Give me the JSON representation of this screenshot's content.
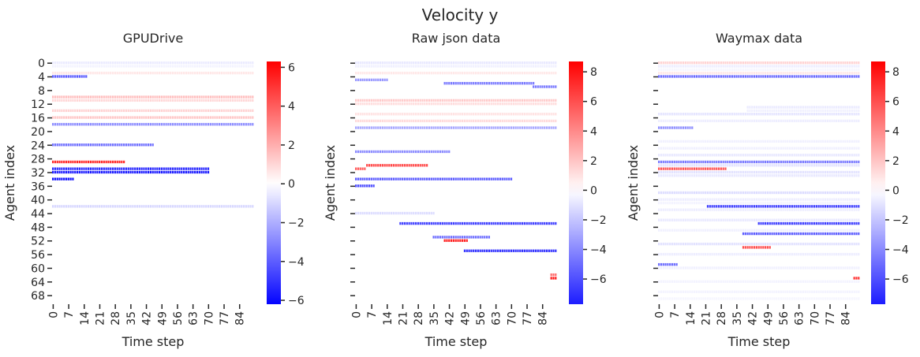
{
  "figure": {
    "suptitle": "Velocity y"
  },
  "chart_data": [
    {
      "type": "heatmap",
      "title": "GPUDrive",
      "xlabel": "Time step",
      "ylabel": "Agent index",
      "n_rows": 71,
      "n_cols": 91,
      "x_ticks": [
        0,
        7,
        14,
        21,
        28,
        35,
        42,
        49,
        56,
        63,
        70,
        77,
        84
      ],
      "y_ticks": [
        0,
        4,
        8,
        12,
        16,
        20,
        24,
        28,
        32,
        36,
        40,
        44,
        48,
        52,
        56,
        60,
        64,
        68
      ],
      "show_ytick_labels": true,
      "colorbar": {
        "vmin": -6.2,
        "vmax": 6.3,
        "ticks": [
          -6,
          -4,
          -2,
          0,
          2,
          4,
          6
        ]
      },
      "agents": [
        {
          "row": 0,
          "start": 0,
          "end": 90,
          "value": -0.5
        },
        {
          "row": 1,
          "start": 0,
          "end": 90,
          "value": -0.3
        },
        {
          "row": 3,
          "start": 0,
          "end": 90,
          "value": 0.6
        },
        {
          "row": 4,
          "start": 0,
          "end": 15,
          "value": -4.0
        },
        {
          "row": 10,
          "start": 0,
          "end": 90,
          "value": 1.6
        },
        {
          "row": 11,
          "start": 0,
          "end": 90,
          "value": 1.0
        },
        {
          "row": 14,
          "start": 0,
          "end": 90,
          "value": 1.1
        },
        {
          "row": 16,
          "start": 0,
          "end": 90,
          "value": 1.4
        },
        {
          "row": 18,
          "start": 0,
          "end": 90,
          "value": -2.8
        },
        {
          "row": 24,
          "start": 0,
          "end": 45,
          "value": -3.5
        },
        {
          "row": 29,
          "start": 0,
          "end": 32,
          "value": 5.2
        },
        {
          "row": 31,
          "start": 0,
          "end": 70,
          "value": -5.2
        },
        {
          "row": 32,
          "start": 0,
          "end": 70,
          "value": -5.6
        },
        {
          "row": 34,
          "start": 0,
          "end": 9,
          "value": -5.8
        },
        {
          "row": 42,
          "start": 0,
          "end": 90,
          "value": -1.0
        }
      ]
    },
    {
      "type": "heatmap",
      "title": "Raw json data",
      "xlabel": "Time step",
      "ylabel": "Agent index",
      "n_rows": 71,
      "n_cols": 91,
      "x_ticks": [
        0,
        7,
        14,
        21,
        28,
        35,
        42,
        49,
        56,
        63,
        70,
        77,
        84
      ],
      "y_ticks": [
        0,
        4,
        8,
        12,
        16,
        20,
        24,
        28,
        32,
        36,
        40,
        44,
        48,
        52,
        56,
        60,
        64,
        68
      ],
      "show_ytick_labels": false,
      "colorbar": {
        "vmin": -7.7,
        "vmax": 8.7,
        "ticks": [
          -6,
          -4,
          -2,
          0,
          2,
          4,
          6,
          8
        ]
      },
      "agents": [
        {
          "row": 0,
          "start": 0,
          "end": 90,
          "value": -0.8
        },
        {
          "row": 1,
          "start": 0,
          "end": 90,
          "value": -0.5
        },
        {
          "row": 3,
          "start": 0,
          "end": 90,
          "value": 0.8
        },
        {
          "row": 5,
          "start": 0,
          "end": 14,
          "value": -3.5
        },
        {
          "row": 6,
          "start": 40,
          "end": 80,
          "value": -4.5
        },
        {
          "row": 7,
          "start": 80,
          "end": 90,
          "value": -4.5
        },
        {
          "row": 11,
          "start": 0,
          "end": 90,
          "value": 1.8
        },
        {
          "row": 12,
          "start": 0,
          "end": 90,
          "value": 1.2
        },
        {
          "row": 15,
          "start": 0,
          "end": 90,
          "value": 1.0
        },
        {
          "row": 17,
          "start": 0,
          "end": 90,
          "value": 1.3
        },
        {
          "row": 19,
          "start": 0,
          "end": 90,
          "value": -3.0
        },
        {
          "row": 26,
          "start": 0,
          "end": 42,
          "value": -4.0
        },
        {
          "row": 30,
          "start": 5,
          "end": 32,
          "value": 6.2
        },
        {
          "row": 31,
          "start": 0,
          "end": 4,
          "value": 5.5
        },
        {
          "row": 34,
          "start": 0,
          "end": 70,
          "value": -5.5
        },
        {
          "row": 36,
          "start": 0,
          "end": 8,
          "value": -6.0
        },
        {
          "row": 44,
          "start": 0,
          "end": 35,
          "value": -1.2
        },
        {
          "row": 47,
          "start": 20,
          "end": 90,
          "value": -6.5
        },
        {
          "row": 51,
          "start": 35,
          "end": 60,
          "value": -5.0
        },
        {
          "row": 52,
          "start": 40,
          "end": 50,
          "value": 7.5
        },
        {
          "row": 55,
          "start": 49,
          "end": 90,
          "value": -7.0
        },
        {
          "row": 62,
          "start": 88,
          "end": 90,
          "value": 5.0
        },
        {
          "row": 63,
          "start": 88,
          "end": 90,
          "value": 8.0
        }
      ]
    },
    {
      "type": "heatmap",
      "title": "Waymax data",
      "xlabel": "Time step",
      "ylabel": "Agent index",
      "n_rows": 71,
      "n_cols": 91,
      "x_ticks": [
        0,
        7,
        14,
        21,
        28,
        35,
        42,
        49,
        56,
        63,
        70,
        77,
        84
      ],
      "y_ticks": [
        0,
        4,
        8,
        12,
        16,
        20,
        24,
        28,
        32,
        36,
        40,
        44,
        48,
        52,
        56,
        60,
        64,
        68
      ],
      "show_ytick_labels": false,
      "colorbar": {
        "vmin": -7.7,
        "vmax": 8.7,
        "ticks": [
          -6,
          -4,
          -2,
          0,
          2,
          4,
          6,
          8
        ]
      },
      "agents": [
        {
          "row": 0,
          "start": 0,
          "end": 90,
          "value": 1.5
        },
        {
          "row": 1,
          "start": 0,
          "end": 90,
          "value": -0.6
        },
        {
          "row": 2,
          "start": 0,
          "end": 90,
          "value": -0.3
        },
        {
          "row": 3,
          "start": 0,
          "end": 90,
          "value": 0.8
        },
        {
          "row": 4,
          "start": 0,
          "end": 90,
          "value": -5.0
        },
        {
          "row": 13,
          "start": 40,
          "end": 90,
          "value": -0.7
        },
        {
          "row": 14,
          "start": 40,
          "end": 90,
          "value": -0.5
        },
        {
          "row": 15,
          "start": 0,
          "end": 90,
          "value": -0.9
        },
        {
          "row": 17,
          "start": 0,
          "end": 90,
          "value": -0.6
        },
        {
          "row": 19,
          "start": 0,
          "end": 15,
          "value": -3.8
        },
        {
          "row": 23,
          "start": 0,
          "end": 90,
          "value": -0.5
        },
        {
          "row": 25,
          "start": 0,
          "end": 90,
          "value": -0.5
        },
        {
          "row": 27,
          "start": 0,
          "end": 90,
          "value": -0.8
        },
        {
          "row": 29,
          "start": 0,
          "end": 90,
          "value": -4.5
        },
        {
          "row": 30,
          "start": 0,
          "end": 90,
          "value": -1.0
        },
        {
          "row": 31,
          "start": 0,
          "end": 30,
          "value": 5.8
        },
        {
          "row": 32,
          "start": 0,
          "end": 90,
          "value": -1.0
        },
        {
          "row": 33,
          "start": 0,
          "end": 90,
          "value": -0.8
        },
        {
          "row": 38,
          "start": 0,
          "end": 90,
          "value": -1.2
        },
        {
          "row": 40,
          "start": 0,
          "end": 90,
          "value": -0.6
        },
        {
          "row": 41,
          "start": 0,
          "end": 90,
          "value": -0.4
        },
        {
          "row": 42,
          "start": 22,
          "end": 90,
          "value": -6.5
        },
        {
          "row": 43,
          "start": 0,
          "end": 90,
          "value": -0.6
        },
        {
          "row": 46,
          "start": 0,
          "end": 90,
          "value": -0.8
        },
        {
          "row": 47,
          "start": 45,
          "end": 90,
          "value": -6.5
        },
        {
          "row": 49,
          "start": 0,
          "end": 90,
          "value": -0.5
        },
        {
          "row": 50,
          "start": 38,
          "end": 90,
          "value": -5.5
        },
        {
          "row": 53,
          "start": 0,
          "end": 90,
          "value": -1.0
        },
        {
          "row": 54,
          "start": 38,
          "end": 50,
          "value": 6.0
        },
        {
          "row": 56,
          "start": 0,
          "end": 90,
          "value": -0.6
        },
        {
          "row": 59,
          "start": 0,
          "end": 8,
          "value": -5.0
        },
        {
          "row": 60,
          "start": 0,
          "end": 90,
          "value": -0.5
        },
        {
          "row": 63,
          "start": 88,
          "end": 90,
          "value": 7.0
        },
        {
          "row": 64,
          "start": 0,
          "end": 90,
          "value": -0.4
        },
        {
          "row": 67,
          "start": 0,
          "end": 90,
          "value": -0.4
        },
        {
          "row": 69,
          "start": 0,
          "end": 90,
          "value": -0.3
        }
      ]
    }
  ]
}
